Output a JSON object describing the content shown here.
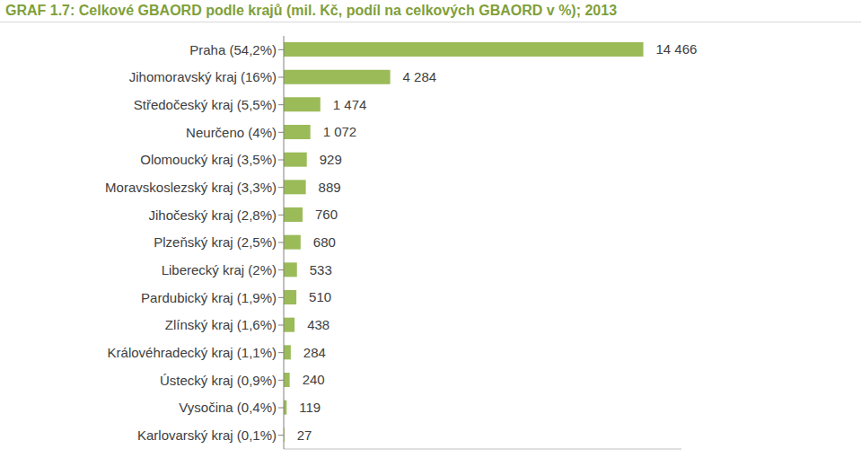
{
  "chart_data": {
    "type": "bar",
    "title": "GRAF 1.7: Celkové GBAORD podle krajů (mil. Kč, podíl na celkových GBAORD v %); 2013",
    "orientation": "horizontal",
    "categories": [
      "Praha (54,2%)",
      "Jihomoravský kraj (16%)",
      "Středočeský kraj (5,5%)",
      "Neurčeno (4%)",
      "Olomoucký kraj (3,5%)",
      "Moravskoslezský kraj (3,3%)",
      "Jihočeský kraj (2,8%)",
      "Plzeňský kraj (2,5%)",
      "Liberecký kraj (2%)",
      "Pardubický kraj (1,9%)",
      "Zlínský kraj (1,6%)",
      "Královéhradecký kraj (1,1%)",
      "Ústecký kraj (0,9%)",
      "Vysočina (0,4%)",
      "Karlovarský kraj (0,1%)"
    ],
    "values": [
      14466,
      4284,
      1474,
      1072,
      929,
      889,
      760,
      680,
      533,
      510,
      438,
      284,
      240,
      119,
      27
    ],
    "value_labels": [
      "14 466",
      "4 284",
      "1 474",
      "1 072",
      "929",
      "889",
      "760",
      "680",
      "533",
      "510",
      "438",
      "284",
      "240",
      "119",
      "27"
    ],
    "color": "#9bbb59",
    "xlim": [
      0,
      16000
    ],
    "data_labels": true,
    "tick_labels": "y",
    "grid": false
  }
}
